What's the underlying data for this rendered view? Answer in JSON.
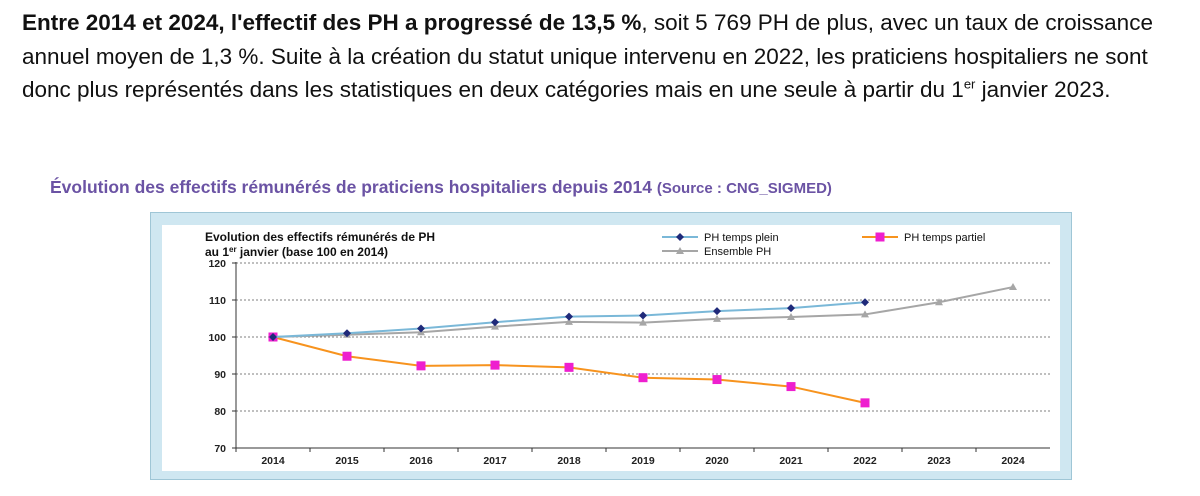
{
  "intro": {
    "bold_lead": "Entre 2014 et 2024, l'effectif des PH a progressé de 13,5 %",
    "sentence_rest": ", soit 5 769 PH de plus, avec un taux de croissance annuel moyen de 1,3 %. Suite à la création du statut unique intervenu en 2022, les praticiens hospitaliers ne sont donc plus représentés dans les statistiques en deux catégories mais en une seule à partir du 1",
    "superscript": "er",
    "tail": " janvier 2023."
  },
  "caption": {
    "title": "Évolution des effectifs rémunérés de praticiens hospitaliers depuis 2014",
    "source": "(Source : CNG_SIGMED)"
  },
  "colors": {
    "plein": "#1f2a7a",
    "plein_line": "#7ab8d8",
    "partiel": "#ee1fcf",
    "partiel_line": "#f7931e",
    "ensemble": "#a6a6a6"
  },
  "chart_data": {
    "type": "line",
    "title_line1": "Evolution des effectifs rémunérés de PH",
    "title_line2_pre": "au 1",
    "title_line2_sup": "er",
    "title_line2_post": " janvier (base 100 en 2014)",
    "categories": [
      "2014",
      "2015",
      "2016",
      "2017",
      "2018",
      "2019",
      "2020",
      "2021",
      "2022",
      "2023",
      "2024"
    ],
    "ylim": [
      70,
      120
    ],
    "yticks": [
      70,
      80,
      90,
      100,
      110,
      120
    ],
    "ytick_labels": [
      "70",
      "80",
      "90",
      "100",
      "110",
      "120"
    ],
    "grid": "horizontal",
    "legend_position": "top",
    "series": [
      {
        "key": "plein",
        "name": "PH temps plein",
        "values": [
          100,
          101.0,
          102.3,
          104.0,
          105.5,
          105.8,
          107.0,
          107.8,
          109.4,
          null,
          null
        ]
      },
      {
        "key": "partiel",
        "name": "PH temps partiel",
        "values": [
          100,
          94.8,
          92.2,
          92.4,
          91.8,
          89.0,
          88.5,
          86.6,
          82.2,
          null,
          null
        ]
      },
      {
        "key": "ensemble",
        "name": "Ensemble PH",
        "values": [
          100,
          100.6,
          101.3,
          102.8,
          104.1,
          103.9,
          104.9,
          105.4,
          106.1,
          109.4,
          113.5
        ]
      }
    ]
  }
}
